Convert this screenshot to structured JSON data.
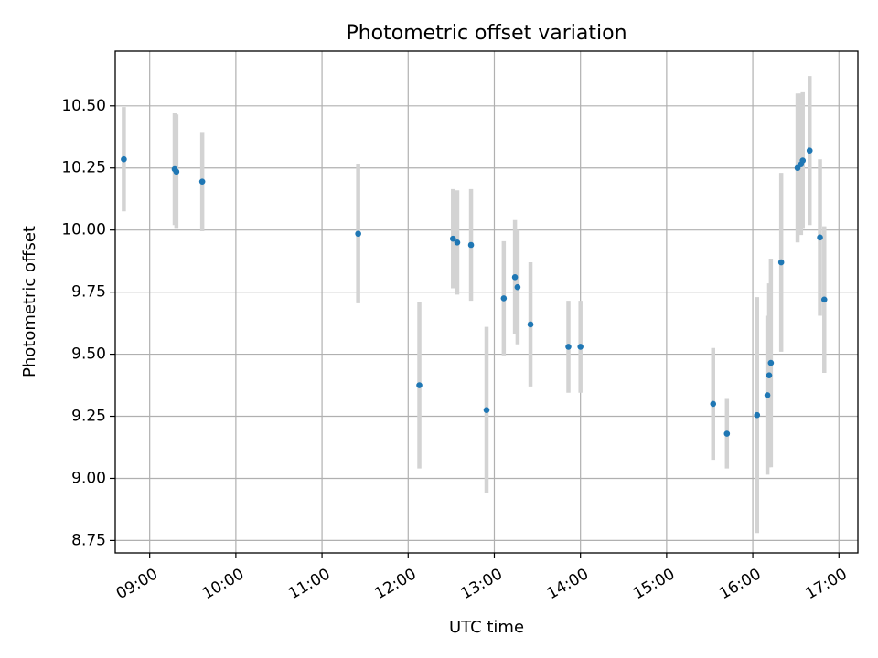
{
  "chart_data": {
    "type": "scatter",
    "title": "Photometric offset variation",
    "xlabel": "UTC time",
    "ylabel": "Photometric offset",
    "x_unit": "hours (UTC)",
    "xlim": [
      8.6,
      17.22
    ],
    "ylim": [
      8.7,
      10.72
    ],
    "x_ticks": [
      {
        "value": 9,
        "label": "09:00"
      },
      {
        "value": 10,
        "label": "10:00"
      },
      {
        "value": 11,
        "label": "11:00"
      },
      {
        "value": 12,
        "label": "12:00"
      },
      {
        "value": 13,
        "label": "13:00"
      },
      {
        "value": 14,
        "label": "14:00"
      },
      {
        "value": 15,
        "label": "15:00"
      },
      {
        "value": 16,
        "label": "16:00"
      },
      {
        "value": 17,
        "label": "17:00"
      }
    ],
    "y_ticks": [
      {
        "value": 8.75,
        "label": "8.75"
      },
      {
        "value": 9.0,
        "label": "9.00"
      },
      {
        "value": 9.25,
        "label": "9.25"
      },
      {
        "value": 9.5,
        "label": "9.50"
      },
      {
        "value": 9.75,
        "label": "9.75"
      },
      {
        "value": 10.0,
        "label": "10.00"
      },
      {
        "value": 10.25,
        "label": "10.25"
      },
      {
        "value": 10.5,
        "label": "10.50"
      }
    ],
    "grid": true,
    "legend": "none",
    "colors": {
      "point": "#1f77b4",
      "errorbar": "#d3d3d3"
    },
    "points": [
      {
        "x": 8.7,
        "y": 10.285,
        "err": 0.21
      },
      {
        "x": 9.29,
        "y": 10.245,
        "err": 0.225
      },
      {
        "x": 9.31,
        "y": 10.235,
        "err": 0.23
      },
      {
        "x": 9.61,
        "y": 10.195,
        "err": 0.2
      },
      {
        "x": 11.42,
        "y": 9.985,
        "err": 0.28
      },
      {
        "x": 12.13,
        "y": 9.375,
        "err": 0.335
      },
      {
        "x": 12.52,
        "y": 9.965,
        "err": 0.2
      },
      {
        "x": 12.57,
        "y": 9.95,
        "err": 0.21
      },
      {
        "x": 12.73,
        "y": 9.94,
        "err": 0.225
      },
      {
        "x": 12.91,
        "y": 9.275,
        "err": 0.335
      },
      {
        "x": 13.11,
        "y": 9.725,
        "err": 0.23
      },
      {
        "x": 13.24,
        "y": 9.81,
        "err": 0.23
      },
      {
        "x": 13.27,
        "y": 9.77,
        "err": 0.23
      },
      {
        "x": 13.42,
        "y": 9.62,
        "err": 0.25
      },
      {
        "x": 13.86,
        "y": 9.53,
        "err": 0.185
      },
      {
        "x": 14.0,
        "y": 9.53,
        "err": 0.185
      },
      {
        "x": 15.54,
        "y": 9.3,
        "err": 0.225
      },
      {
        "x": 15.7,
        "y": 9.18,
        "err": 0.14
      },
      {
        "x": 16.05,
        "y": 9.255,
        "err": 0.475
      },
      {
        "x": 16.17,
        "y": 9.335,
        "err": 0.32
      },
      {
        "x": 16.19,
        "y": 9.415,
        "err": 0.37
      },
      {
        "x": 16.21,
        "y": 9.465,
        "err": 0.42
      },
      {
        "x": 16.33,
        "y": 9.87,
        "err": 0.36
      },
      {
        "x": 16.52,
        "y": 10.25,
        "err": 0.3
      },
      {
        "x": 16.56,
        "y": 10.265,
        "err": 0.285
      },
      {
        "x": 16.58,
        "y": 10.28,
        "err": 0.275
      },
      {
        "x": 16.66,
        "y": 10.32,
        "err": 0.3
      },
      {
        "x": 16.78,
        "y": 9.97,
        "err": 0.315
      },
      {
        "x": 16.83,
        "y": 9.72,
        "err": 0.295
      }
    ]
  }
}
